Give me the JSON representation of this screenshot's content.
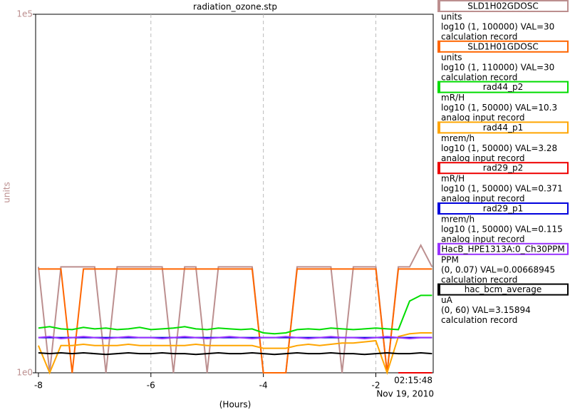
{
  "chart_data": {
    "type": "line",
    "title": "radiation_ozone.stp",
    "y_label": "units",
    "x_label": "(Hours)",
    "time_label": "02:15:48",
    "date_label": "Nov 19, 2010",
    "log_y": true,
    "grid": true,
    "xlim": [
      -8.05,
      -0.98
    ],
    "xticks": [
      -8,
      -6,
      -4,
      -2
    ],
    "ylim": [
      1,
      100000
    ],
    "yticks": [
      {
        "value": 100000,
        "label": "1e5"
      },
      {
        "value": 1,
        "label": "1e0"
      }
    ],
    "x": [
      -8.0,
      -7.8,
      -7.6,
      -7.4,
      -7.2,
      -7.0,
      -6.8,
      -6.6,
      -6.4,
      -6.2,
      -6.0,
      -5.8,
      -5.6,
      -5.4,
      -5.2,
      -5.0,
      -4.8,
      -4.6,
      -4.4,
      -4.2,
      -4.0,
      -3.8,
      -3.6,
      -3.4,
      -3.2,
      -3.0,
      -2.8,
      -2.6,
      -2.4,
      -2.2,
      -2.0,
      -1.8,
      -1.6,
      -1.4,
      -1.2,
      -1.0
    ],
    "series": [
      {
        "name": "SLD1H02GDOSC",
        "color": "#bc8f8f",
        "units": "units",
        "range": "log10 (1, 100000) VAL=30",
        "record": "calculation record",
        "values": [
          30,
          1,
          30,
          30,
          30,
          30,
          1,
          30,
          30,
          30,
          30,
          30,
          1,
          30,
          30,
          1,
          30,
          30,
          30,
          30,
          1,
          1,
          1,
          30,
          30,
          30,
          30,
          1,
          30,
          30,
          30,
          1,
          30,
          30,
          60,
          30
        ]
      },
      {
        "name": "SLD1H01GDOSC",
        "color": "#ff6600",
        "units": "units",
        "range": "log10 (1, 110000) VAL=30",
        "record": "calculation record",
        "values": [
          28,
          28,
          28,
          1,
          28,
          28,
          28,
          28,
          28,
          28,
          28,
          28,
          28,
          28,
          28,
          28,
          28,
          28,
          28,
          28,
          1,
          1,
          1,
          28,
          28,
          28,
          28,
          28,
          28,
          28,
          28,
          1,
          28,
          28,
          28,
          28
        ]
      },
      {
        "name": "rad44_p2",
        "color": "#00dd00",
        "units": "mR/H",
        "range": "log10 (1, 50000) VAL=10.3",
        "record": "analog input record",
        "values": [
          4.2,
          4.4,
          4.1,
          4.0,
          4.3,
          4.1,
          4.2,
          4.0,
          4.1,
          4.3,
          4.0,
          4.1,
          4.2,
          4.4,
          4.1,
          4.0,
          4.2,
          4.1,
          4.0,
          4.1,
          3.6,
          3.5,
          3.6,
          4.0,
          4.1,
          4.0,
          4.2,
          4.1,
          4.0,
          4.1,
          4.2,
          4.1,
          4.0,
          10,
          12,
          12
        ]
      },
      {
        "name": "rad44_p1",
        "color": "#ffa500",
        "units": "mrem/h",
        "range": "log10 (1, 50000) VAL=3.28",
        "record": "analog input record",
        "values": [
          2.4,
          1,
          2.4,
          2.4,
          2.5,
          2.4,
          2.4,
          2.4,
          2.5,
          2.4,
          2.4,
          2.4,
          2.4,
          2.4,
          2.5,
          2.4,
          2.4,
          2.4,
          2.4,
          2.4,
          2.2,
          2.2,
          2.2,
          2.4,
          2.5,
          2.4,
          2.5,
          2.6,
          2.6,
          2.7,
          2.8,
          1,
          3.2,
          3.5,
          3.6,
          3.6
        ]
      },
      {
        "name": "rad29_p2",
        "color": "#ee0000",
        "units": "mR/H",
        "range": "log10 (1, 50000) VAL=0.371",
        "record": "analog input record",
        "values": [
          null,
          null,
          null,
          null,
          null,
          null,
          null,
          null,
          null,
          null,
          null,
          null,
          null,
          null,
          null,
          null,
          null,
          null,
          null,
          null,
          null,
          null,
          null,
          null,
          null,
          null,
          null,
          null,
          null,
          null,
          null,
          null,
          1,
          1,
          1,
          1
        ]
      },
      {
        "name": "rad29_p1",
        "color": "#0000dd",
        "units": "mrem/h",
        "range": "log10 (1, 50000) VAL=0.115",
        "record": "analog input record",
        "values": [
          3.1,
          3.1,
          3.1,
          3.1,
          3.1,
          3.1,
          3.1,
          3.1,
          3.1,
          3.1,
          3.1,
          3.1,
          3.1,
          3.1,
          3.1,
          3.1,
          3.1,
          3.1,
          3.1,
          3.1,
          3.1,
          3.1,
          3.1,
          3.1,
          3.1,
          3.1,
          3.1,
          3.1,
          3.1,
          3.1,
          3.1,
          3.1,
          3.1,
          3.1,
          3.1,
          3.1
        ]
      },
      {
        "name": "HacB_HPE1313A:0_Ch30PPM",
        "color": "#9933ff",
        "units": "PPM",
        "range": "(0, 0.07) VAL=0.00668945",
        "record": "calculation record",
        "values": [
          3.1,
          3.2,
          3.0,
          3.1,
          3.2,
          3.1,
          3.0,
          3.1,
          3.2,
          3.1,
          3.1,
          3.0,
          3.1,
          3.2,
          3.1,
          3.0,
          3.1,
          3.2,
          3.1,
          3.0,
          3.1,
          3.1,
          3.2,
          3.1,
          3.0,
          3.1,
          3.2,
          3.1,
          3.1,
          3.0,
          3.1,
          3.2,
          3.1,
          3.0,
          3.1,
          3.1
        ]
      },
      {
        "name": "hac_bcm_average",
        "color": "#000000",
        "units": "uA",
        "range": "(0, 60) VAL=3.15894",
        "record": "calculation record",
        "values": [
          1.9,
          1.85,
          1.9,
          1.85,
          1.9,
          1.85,
          1.8,
          1.85,
          1.9,
          1.85,
          1.85,
          1.9,
          1.85,
          1.85,
          1.8,
          1.85,
          1.9,
          1.85,
          1.85,
          1.9,
          1.85,
          1.8,
          1.85,
          1.9,
          1.85,
          1.85,
          1.9,
          1.85,
          1.85,
          1.8,
          1.85,
          1.9,
          1.85,
          1.85,
          1.9,
          1.85
        ]
      }
    ]
  }
}
